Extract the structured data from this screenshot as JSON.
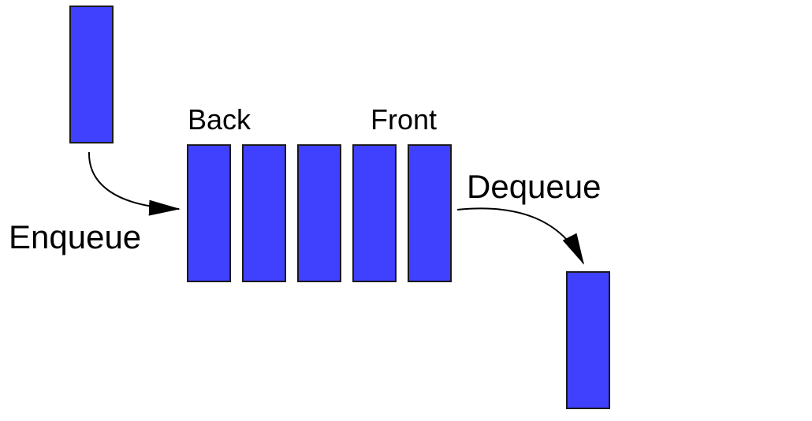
{
  "labels": {
    "back": "Back",
    "front": "Front",
    "enqueue": "Enqueue",
    "dequeue": "Dequeue"
  },
  "queue": {
    "element_count": 5
  },
  "colors": {
    "element_fill": "#4040ff",
    "element_stroke": "#1a1a1a",
    "arrow_color": "#000000",
    "background": "#ffffff"
  }
}
